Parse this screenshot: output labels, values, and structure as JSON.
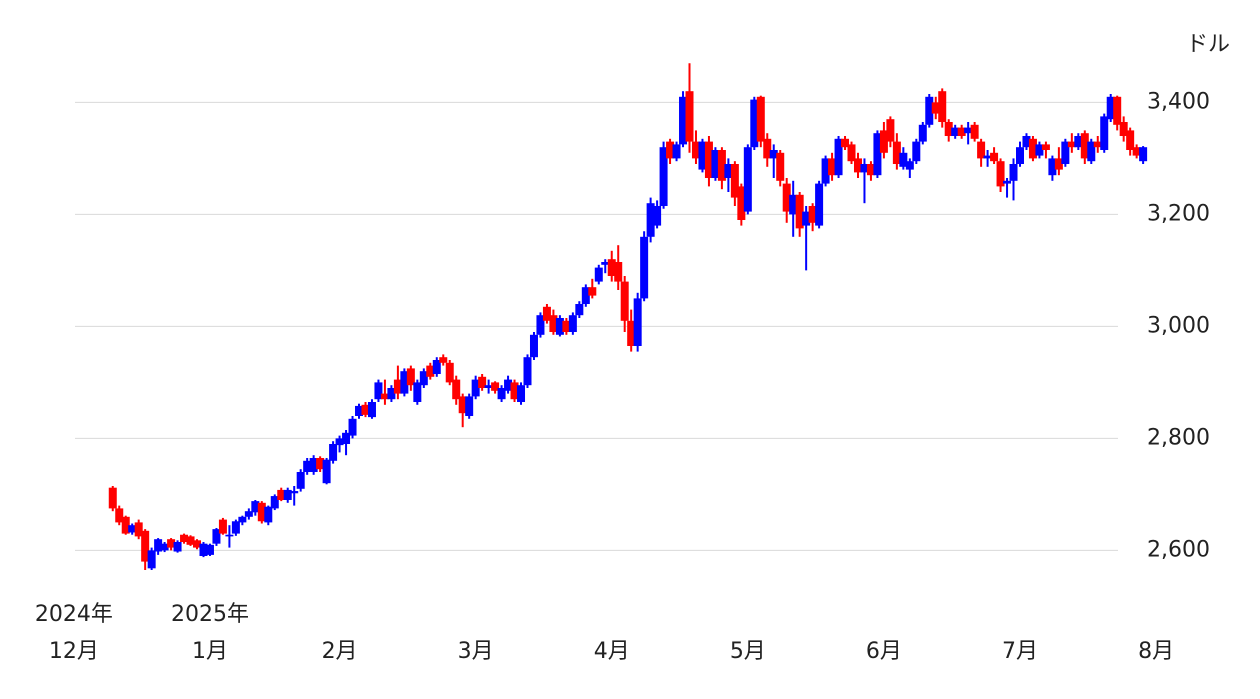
{
  "chart_data": {
    "type": "candlestick",
    "unit_label": "ドル",
    "up_color": "#0000ff",
    "down_color": "#ff0000",
    "grid": true,
    "ylim": [
      2540,
      3480
    ],
    "yticks": [
      {
        "value": 2600,
        "label": "2,600"
      },
      {
        "value": 2800,
        "label": "2,800"
      },
      {
        "value": 3000,
        "label": "3,000"
      },
      {
        "value": 3200,
        "label": "3,200"
      },
      {
        "value": 3400,
        "label": "3,400"
      }
    ],
    "xlim": [
      -12,
      165
    ],
    "xticks": [
      {
        "value": -6,
        "label": "12月"
      },
      {
        "value": 15,
        "label": "1月"
      },
      {
        "value": 35,
        "label": "2月"
      },
      {
        "value": 56,
        "label": "3月"
      },
      {
        "value": 77,
        "label": "4月"
      },
      {
        "value": 98,
        "label": "5月"
      },
      {
        "value": 119,
        "label": "6月"
      },
      {
        "value": 140,
        "label": "7月"
      },
      {
        "value": 161,
        "label": "8月"
      }
    ],
    "year_labels": [
      {
        "value": -6,
        "label": "2024年"
      },
      {
        "value": 15,
        "label": "2025年"
      }
    ],
    "candles": [
      [
        2712,
        2715,
        2670,
        2675
      ],
      [
        2675,
        2680,
        2645,
        2650
      ],
      [
        2660,
        2662,
        2628,
        2630
      ],
      [
        2632,
        2648,
        2628,
        2645
      ],
      [
        2650,
        2655,
        2620,
        2625
      ],
      [
        2635,
        2638,
        2565,
        2580
      ],
      [
        2568,
        2605,
        2565,
        2600
      ],
      [
        2598,
        2622,
        2592,
        2620
      ],
      [
        2600,
        2615,
        2597,
        2612
      ],
      [
        2620,
        2622,
        2600,
        2605
      ],
      [
        2598,
        2618,
        2596,
        2615
      ],
      [
        2628,
        2630,
        2612,
        2615
      ],
      [
        2625,
        2627,
        2608,
        2610
      ],
      [
        2618,
        2620,
        2602,
        2605
      ],
      [
        2590,
        2615,
        2588,
        2612
      ],
      [
        2592,
        2612,
        2590,
        2610
      ],
      [
        2612,
        2640,
        2608,
        2638
      ],
      [
        2655,
        2658,
        2628,
        2630
      ],
      [
        2625,
        2645,
        2605,
        2628
      ],
      [
        2630,
        2655,
        2626,
        2652
      ],
      [
        2650,
        2662,
        2645,
        2660
      ],
      [
        2660,
        2675,
        2655,
        2670
      ],
      [
        2668,
        2690,
        2662,
        2688
      ],
      [
        2685,
        2688,
        2648,
        2652
      ],
      [
        2650,
        2680,
        2645,
        2678
      ],
      [
        2675,
        2700,
        2672,
        2697
      ],
      [
        2708,
        2712,
        2688,
        2690
      ],
      [
        2690,
        2712,
        2685,
        2708
      ],
      [
        2702,
        2715,
        2680,
        2706
      ],
      [
        2710,
        2745,
        2705,
        2740
      ],
      [
        2740,
        2765,
        2735,
        2760
      ],
      [
        2740,
        2770,
        2735,
        2765
      ],
      [
        2765,
        2768,
        2740,
        2745
      ],
      [
        2720,
        2765,
        2718,
        2762
      ],
      [
        2760,
        2795,
        2755,
        2790
      ],
      [
        2788,
        2805,
        2775,
        2800
      ],
      [
        2790,
        2815,
        2770,
        2810
      ],
      [
        2805,
        2840,
        2800,
        2835
      ],
      [
        2840,
        2862,
        2835,
        2858
      ],
      [
        2860,
        2865,
        2838,
        2842
      ],
      [
        2838,
        2870,
        2835,
        2865
      ],
      [
        2870,
        2905,
        2865,
        2900
      ],
      [
        2880,
        2905,
        2860,
        2870
      ],
      [
        2870,
        2895,
        2865,
        2890
      ],
      [
        2905,
        2930,
        2870,
        2880
      ],
      [
        2880,
        2925,
        2875,
        2920
      ],
      [
        2925,
        2930,
        2885,
        2895
      ],
      [
        2865,
        2905,
        2860,
        2900
      ],
      [
        2895,
        2925,
        2890,
        2920
      ],
      [
        2930,
        2935,
        2905,
        2910
      ],
      [
        2915,
        2945,
        2910,
        2940
      ],
      [
        2945,
        2950,
        2930,
        2935
      ],
      [
        2935,
        2940,
        2895,
        2900
      ],
      [
        2905,
        2912,
        2860,
        2870
      ],
      [
        2875,
        2880,
        2820,
        2845
      ],
      [
        2840,
        2880,
        2835,
        2875
      ],
      [
        2875,
        2912,
        2870,
        2905
      ],
      [
        2910,
        2915,
        2885,
        2890
      ],
      [
        2890,
        2905,
        2880,
        2895
      ],
      [
        2900,
        2902,
        2880,
        2885
      ],
      [
        2870,
        2895,
        2865,
        2890
      ],
      [
        2885,
        2912,
        2880,
        2905
      ],
      [
        2900,
        2905,
        2865,
        2870
      ],
      [
        2865,
        2900,
        2860,
        2895
      ],
      [
        2895,
        2950,
        2890,
        2945
      ],
      [
        2945,
        2990,
        2940,
        2985
      ],
      [
        2985,
        3025,
        2980,
        3020
      ],
      [
        3035,
        3040,
        3005,
        3010
      ],
      [
        3020,
        3030,
        2985,
        2990
      ],
      [
        2985,
        3020,
        2982,
        3015
      ],
      [
        3010,
        3015,
        2985,
        2990
      ],
      [
        2990,
        3025,
        2985,
        3020
      ],
      [
        3020,
        3045,
        3015,
        3040
      ],
      [
        3040,
        3075,
        3035,
        3070
      ],
      [
        3070,
        3085,
        3050,
        3055
      ],
      [
        3080,
        3110,
        3075,
        3105
      ],
      [
        3110,
        3120,
        3095,
        3115
      ],
      [
        3120,
        3135,
        3080,
        3090
      ],
      [
        3115,
        3145,
        3065,
        3080
      ],
      [
        3080,
        3090,
        2990,
        3010
      ],
      [
        3010,
        3030,
        2955,
        2965
      ],
      [
        2965,
        3060,
        2955,
        3050
      ],
      [
        3050,
        3170,
        3045,
        3160
      ],
      [
        3160,
        3230,
        3150,
        3220
      ],
      [
        3180,
        3225,
        3175,
        3215
      ],
      [
        3215,
        3330,
        3210,
        3320
      ],
      [
        3330,
        3335,
        3290,
        3300
      ],
      [
        3300,
        3330,
        3295,
        3325
      ],
      [
        3325,
        3420,
        3320,
        3410
      ],
      [
        3420,
        3470,
        3310,
        3330
      ],
      [
        3330,
        3350,
        3290,
        3300
      ],
      [
        3280,
        3335,
        3275,
        3330
      ],
      [
        3330,
        3340,
        3250,
        3265
      ],
      [
        3265,
        3320,
        3260,
        3315
      ],
      [
        3315,
        3320,
        3245,
        3260
      ],
      [
        3265,
        3300,
        3240,
        3290
      ],
      [
        3290,
        3295,
        3215,
        3230
      ],
      [
        3250,
        3255,
        3180,
        3190
      ],
      [
        3205,
        3325,
        3200,
        3320
      ],
      [
        3320,
        3410,
        3315,
        3405
      ],
      [
        3410,
        3412,
        3320,
        3330
      ],
      [
        3335,
        3345,
        3285,
        3300
      ],
      [
        3300,
        3325,
        3265,
        3315
      ],
      [
        3310,
        3315,
        3250,
        3260
      ],
      [
        3255,
        3265,
        3185,
        3205
      ],
      [
        3200,
        3260,
        3160,
        3235
      ],
      [
        3235,
        3240,
        3160,
        3175
      ],
      [
        3180,
        3215,
        3100,
        3205
      ],
      [
        3215,
        3220,
        3170,
        3185
      ],
      [
        3180,
        3260,
        3175,
        3255
      ],
      [
        3255,
        3305,
        3250,
        3300
      ],
      [
        3300,
        3310,
        3260,
        3270
      ],
      [
        3270,
        3340,
        3265,
        3335
      ],
      [
        3335,
        3340,
        3315,
        3320
      ],
      [
        3325,
        3330,
        3290,
        3295
      ],
      [
        3300,
        3310,
        3265,
        3275
      ],
      [
        3275,
        3300,
        3220,
        3290
      ],
      [
        3290,
        3295,
        3260,
        3270
      ],
      [
        3270,
        3350,
        3265,
        3345
      ],
      [
        3350,
        3365,
        3300,
        3310
      ],
      [
        3370,
        3375,
        3320,
        3330
      ],
      [
        3330,
        3345,
        3280,
        3290
      ],
      [
        3285,
        3320,
        3280,
        3310
      ],
      [
        3280,
        3300,
        3265,
        3295
      ],
      [
        3295,
        3335,
        3290,
        3330
      ],
      [
        3330,
        3365,
        3325,
        3360
      ],
      [
        3360,
        3415,
        3355,
        3410
      ],
      [
        3400,
        3410,
        3370,
        3380
      ],
      [
        3420,
        3425,
        3355,
        3365
      ],
      [
        3365,
        3370,
        3330,
        3340
      ],
      [
        3340,
        3360,
        3335,
        3355
      ],
      [
        3355,
        3360,
        3335,
        3340
      ],
      [
        3345,
        3365,
        3325,
        3355
      ],
      [
        3360,
        3365,
        3330,
        3335
      ],
      [
        3330,
        3335,
        3285,
        3300
      ],
      [
        3300,
        3315,
        3285,
        3305
      ],
      [
        3310,
        3320,
        3290,
        3295
      ],
      [
        3295,
        3300,
        3240,
        3250
      ],
      [
        3255,
        3265,
        3230,
        3260
      ],
      [
        3260,
        3300,
        3225,
        3290
      ],
      [
        3290,
        3330,
        3285,
        3320
      ],
      [
        3320,
        3345,
        3315,
        3340
      ],
      [
        3335,
        3340,
        3295,
        3300
      ],
      [
        3305,
        3330,
        3300,
        3325
      ],
      [
        3325,
        3330,
        3300,
        3315
      ],
      [
        3270,
        3305,
        3260,
        3300
      ],
      [
        3300,
        3320,
        3270,
        3280
      ],
      [
        3290,
        3335,
        3285,
        3330
      ],
      [
        3330,
        3345,
        3310,
        3320
      ],
      [
        3320,
        3345,
        3315,
        3340
      ],
      [
        3345,
        3350,
        3290,
        3300
      ],
      [
        3295,
        3335,
        3290,
        3330
      ],
      [
        3330,
        3340,
        3310,
        3320
      ],
      [
        3315,
        3380,
        3310,
        3375
      ],
      [
        3370,
        3415,
        3365,
        3410
      ],
      [
        3410,
        3412,
        3350,
        3360
      ],
      [
        3365,
        3375,
        3330,
        3340
      ],
      [
        3350,
        3355,
        3305,
        3315
      ],
      [
        3320,
        3325,
        3300,
        3305
      ],
      [
        3295,
        3322,
        3290,
        3320
      ]
    ]
  }
}
